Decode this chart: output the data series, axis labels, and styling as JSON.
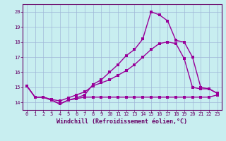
{
  "xlabel": "Windchill (Refroidissement éolien,°C)",
  "background_color": "#c8eef0",
  "grid_color": "#a0b8d8",
  "line_color": "#990099",
  "xlim": [
    -0.5,
    23.5
  ],
  "ylim": [
    13.5,
    20.5
  ],
  "xticks": [
    0,
    1,
    2,
    3,
    4,
    5,
    6,
    7,
    8,
    9,
    10,
    11,
    12,
    13,
    14,
    15,
    16,
    17,
    18,
    19,
    20,
    21,
    22,
    23
  ],
  "yticks": [
    14,
    15,
    16,
    17,
    18,
    19,
    20
  ],
  "line1_x": [
    0,
    1,
    2,
    3,
    4,
    5,
    6,
    7,
    8,
    9,
    10,
    11,
    12,
    13,
    14,
    15,
    16,
    17,
    18,
    19,
    20,
    21,
    22,
    23
  ],
  "line1_y": [
    15.1,
    14.35,
    14.35,
    14.15,
    13.9,
    14.15,
    14.25,
    14.35,
    14.35,
    14.35,
    14.35,
    14.35,
    14.35,
    14.35,
    14.35,
    14.35,
    14.35,
    14.35,
    14.35,
    14.35,
    14.35,
    14.35,
    14.35,
    14.5
  ],
  "line2_x": [
    0,
    1,
    2,
    3,
    4,
    5,
    6,
    7,
    8,
    9,
    10,
    11,
    12,
    13,
    14,
    15,
    16,
    17,
    18,
    19,
    20,
    21,
    22,
    23
  ],
  "line2_y": [
    15.1,
    14.35,
    14.35,
    14.2,
    14.1,
    14.3,
    14.5,
    14.7,
    15.1,
    15.3,
    15.5,
    15.8,
    16.1,
    16.5,
    17.0,
    17.5,
    17.9,
    18.0,
    17.9,
    16.9,
    15.0,
    14.9,
    14.9,
    14.6
  ],
  "line3_x": [
    0,
    1,
    2,
    3,
    4,
    5,
    6,
    7,
    8,
    9,
    10,
    11,
    12,
    13,
    14,
    15,
    16,
    17,
    18,
    19,
    20,
    21,
    22,
    23
  ],
  "line3_y": [
    15.1,
    14.35,
    14.35,
    14.15,
    13.9,
    14.15,
    14.3,
    14.5,
    15.2,
    15.5,
    16.0,
    16.5,
    17.1,
    17.5,
    18.2,
    20.0,
    19.8,
    19.4,
    18.1,
    18.0,
    17.0,
    15.0,
    14.9,
    14.6
  ],
  "marker_size": 2.5,
  "line_width": 1.0,
  "tick_fontsize": 5.0,
  "label_fontsize": 6.0
}
